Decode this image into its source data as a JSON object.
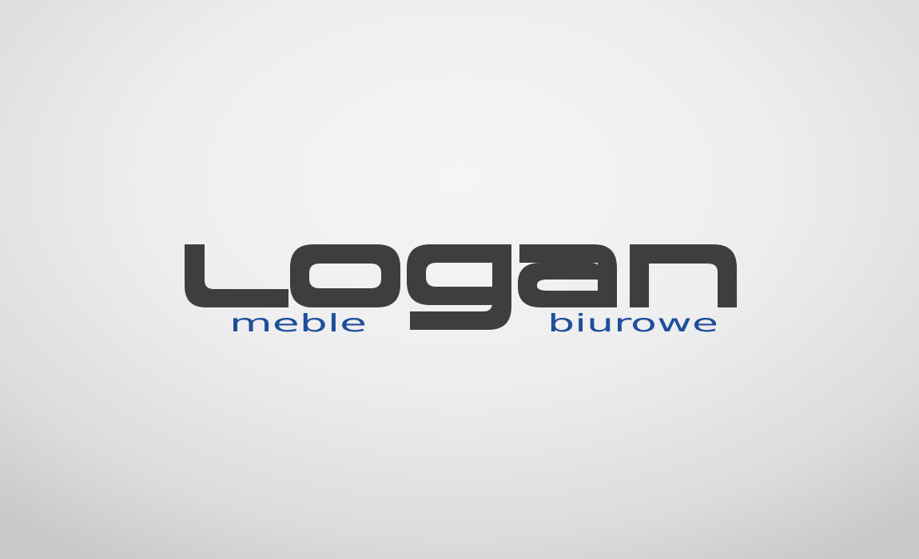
{
  "logo": {
    "name": "logan",
    "tagline_left": "meble",
    "tagline_right": "biurowe",
    "colors": {
      "wordmark": "#3d3e40",
      "tagline": "#1e4f9a"
    }
  }
}
